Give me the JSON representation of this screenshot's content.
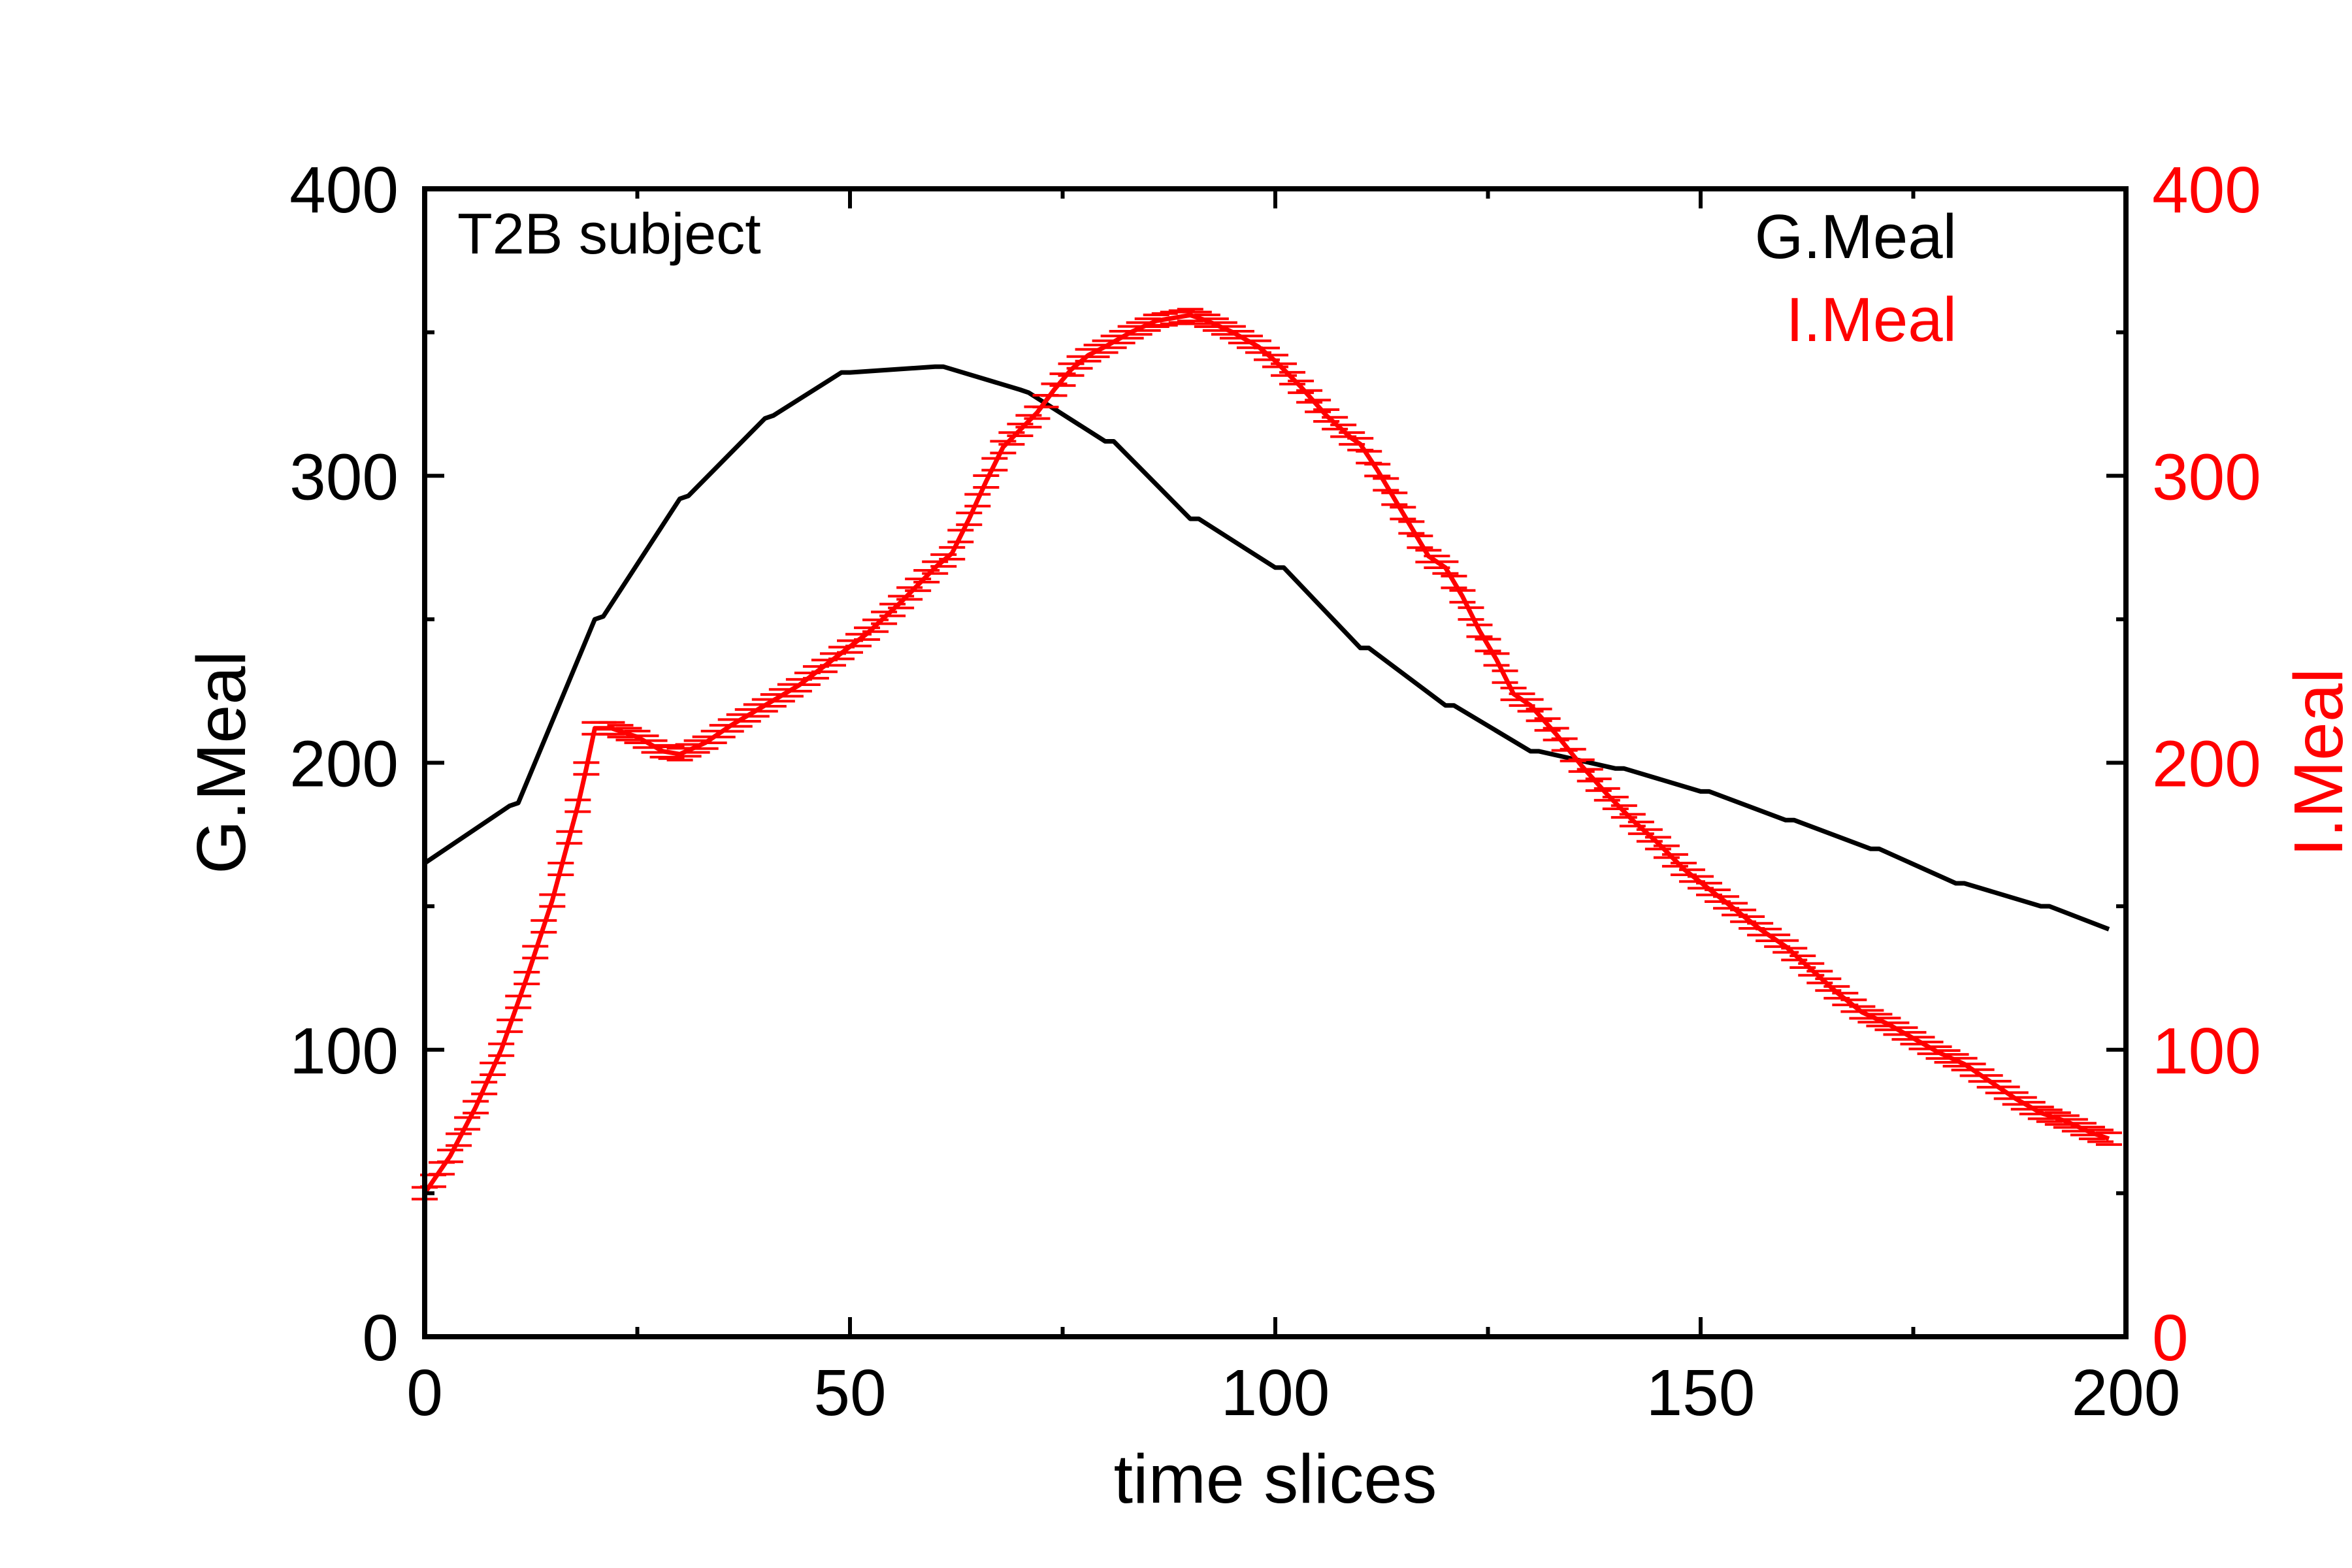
{
  "chart_data": {
    "type": "line",
    "annotation": "T2B subject",
    "xlabel": "time slices",
    "ylabel_left": "G.Meal",
    "ylabel_right": "I.Meal",
    "xlim": [
      0,
      200
    ],
    "ylim_left": [
      0,
      400
    ],
    "ylim_right": [
      0,
      400
    ],
    "x_ticks": [
      "0",
      "50",
      "100",
      "150",
      "200"
    ],
    "y_ticks_left": [
      "0",
      "100",
      "200",
      "300",
      "400"
    ],
    "y_ticks_right": [
      "0",
      "100",
      "200",
      "300",
      "400"
    ],
    "legend_position": "top-right",
    "grid": false,
    "colors": {
      "g_meal": "#000000",
      "i_meal": "#ff0000"
    },
    "series": [
      {
        "name": "G.Meal",
        "axis": "left",
        "marker": "none",
        "points": [
          [
            0,
            165
          ],
          [
            10,
            185
          ],
          [
            11,
            186
          ],
          [
            20,
            250
          ],
          [
            21,
            251
          ],
          [
            30,
            292
          ],
          [
            31,
            293
          ],
          [
            40,
            320
          ],
          [
            41,
            321
          ],
          [
            49,
            336
          ],
          [
            50,
            336
          ],
          [
            60,
            338
          ],
          [
            61,
            338
          ],
          [
            70,
            330
          ],
          [
            71,
            329
          ],
          [
            80,
            312
          ],
          [
            81,
            312
          ],
          [
            90,
            285
          ],
          [
            91,
            285
          ],
          [
            100,
            268
          ],
          [
            101,
            268
          ],
          [
            110,
            240
          ],
          [
            111,
            240
          ],
          [
            120,
            220
          ],
          [
            121,
            220
          ],
          [
            130,
            204
          ],
          [
            131,
            204
          ],
          [
            140,
            198
          ],
          [
            141,
            198
          ],
          [
            150,
            190
          ],
          [
            151,
            190
          ],
          [
            160,
            180
          ],
          [
            161,
            180
          ],
          [
            170,
            170
          ],
          [
            171,
            170
          ],
          [
            180,
            158
          ],
          [
            181,
            158
          ],
          [
            190,
            150
          ],
          [
            191,
            150
          ],
          [
            198,
            142
          ]
        ]
      },
      {
        "name": "I.Meal",
        "axis": "right",
        "marker": "double-dash",
        "points": [
          [
            0,
            50
          ],
          [
            3,
            63
          ],
          [
            6,
            80
          ],
          [
            9,
            100
          ],
          [
            12,
            125
          ],
          [
            15,
            152
          ],
          [
            18,
            185
          ],
          [
            19,
            198
          ],
          [
            20,
            212
          ],
          [
            22,
            212
          ],
          [
            25,
            209
          ],
          [
            28,
            204
          ],
          [
            30,
            203
          ],
          [
            33,
            207
          ],
          [
            36,
            213
          ],
          [
            40,
            220
          ],
          [
            44,
            227
          ],
          [
            48,
            236
          ],
          [
            52,
            245
          ],
          [
            56,
            256
          ],
          [
            60,
            268
          ],
          [
            62,
            273
          ],
          [
            64,
            285
          ],
          [
            66,
            298
          ],
          [
            68,
            310
          ],
          [
            70,
            316
          ],
          [
            72,
            322
          ],
          [
            74,
            330
          ],
          [
            76,
            337
          ],
          [
            78,
            342
          ],
          [
            80,
            345
          ],
          [
            83,
            350
          ],
          [
            86,
            354
          ],
          [
            88,
            355
          ],
          [
            90,
            356
          ],
          [
            92,
            354
          ],
          [
            95,
            350
          ],
          [
            98,
            345
          ],
          [
            100,
            340
          ],
          [
            103,
            331
          ],
          [
            106,
            321
          ],
          [
            109,
            313
          ],
          [
            110,
            311
          ],
          [
            112,
            302
          ],
          [
            114,
            292
          ],
          [
            116,
            282
          ],
          [
            118,
            272
          ],
          [
            120,
            268
          ],
          [
            122,
            258
          ],
          [
            124,
            246
          ],
          [
            126,
            236
          ],
          [
            128,
            224
          ],
          [
            130,
            220
          ],
          [
            133,
            210
          ],
          [
            136,
            199
          ],
          [
            139,
            189
          ],
          [
            142,
            180
          ],
          [
            145,
            172
          ],
          [
            148,
            163
          ],
          [
            151,
            156
          ],
          [
            154,
            149
          ],
          [
            157,
            142
          ],
          [
            160,
            136
          ],
          [
            163,
            128
          ],
          [
            166,
            120
          ],
          [
            169,
            113
          ],
          [
            172,
            109
          ],
          [
            175,
            104
          ],
          [
            178,
            99
          ],
          [
            181,
            95
          ],
          [
            184,
            89
          ],
          [
            187,
            83
          ],
          [
            190,
            78
          ],
          [
            193,
            75
          ],
          [
            196,
            71
          ],
          [
            198,
            69
          ]
        ]
      }
    ]
  }
}
